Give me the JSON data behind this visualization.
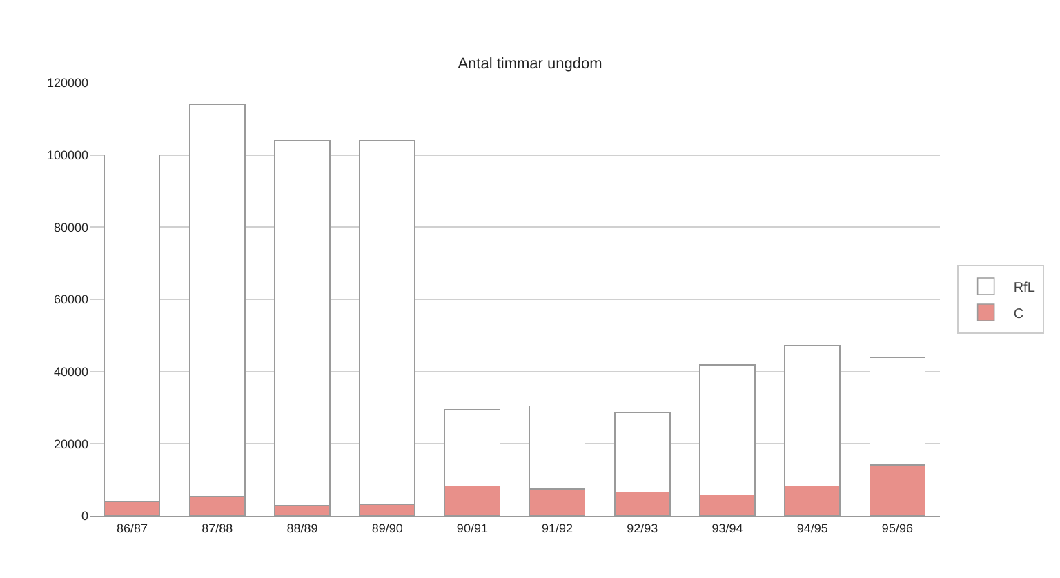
{
  "chart_data": {
    "type": "bar",
    "title": "Antal timmar ungdom",
    "stacked": true,
    "categories": [
      "86/87",
      "87/88",
      "88/89",
      "89/90",
      "90/91",
      "91/92",
      "92/93",
      "93/94",
      "94/95",
      "95/96"
    ],
    "series": [
      {
        "name": "C",
        "color": "#e8908a",
        "values": [
          4000,
          5400,
          3000,
          3200,
          8300,
          7500,
          6600,
          5800,
          8300,
          14100
        ]
      },
      {
        "name": "RfL",
        "color": "#ffffff",
        "values": [
          96000,
          108600,
          101000,
          100800,
          21100,
          23000,
          22000,
          36000,
          38900,
          29800
        ]
      }
    ],
    "ylim": [
      0,
      120000
    ],
    "yticks": [
      0,
      20000,
      40000,
      60000,
      80000,
      100000,
      120000
    ],
    "grid": "y",
    "legend": "right"
  }
}
